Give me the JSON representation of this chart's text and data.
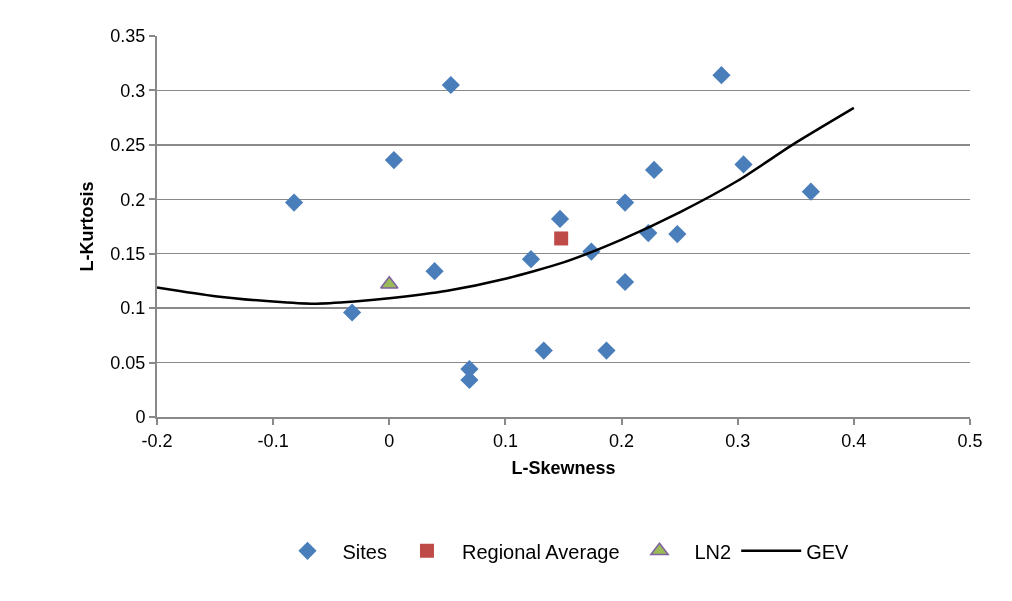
{
  "chart_data": {
    "type": "scatter",
    "xlabel": "L-Skewness",
    "ylabel": "L-Kurtosis",
    "xlim": [
      -0.2,
      0.5
    ],
    "xticks": [
      -0.2,
      -0.1,
      0,
      0.1,
      0.2,
      0.3,
      0.4,
      0.5
    ],
    "ylim": [
      0,
      0.35
    ],
    "yticks": [
      0,
      0.05,
      0.1,
      0.15,
      0.2,
      0.25,
      0.3,
      0.35
    ],
    "grid": "y",
    "legend": "bottom",
    "series": [
      {
        "name": "Sites",
        "color": "#4a7ebb",
        "marker": "diamond",
        "x": [
          -0.082,
          0.004,
          0.053,
          -0.032,
          0.039,
          0.069,
          0.069,
          0.122,
          0.133,
          0.147,
          0.174,
          0.203,
          0.203,
          0.223,
          0.228,
          0.248,
          0.286,
          0.305,
          0.363,
          0.187
        ],
        "values": [
          0.197,
          0.236,
          0.305,
          0.096,
          0.134,
          0.044,
          0.034,
          0.145,
          0.061,
          0.182,
          0.152,
          0.197,
          0.124,
          0.169,
          0.227,
          0.168,
          0.314,
          0.232,
          0.207,
          0.061
        ]
      },
      {
        "name": "Regional Average",
        "color": "#be4b48",
        "marker": "square",
        "x": [
          0.148
        ],
        "values": [
          0.164
        ]
      },
      {
        "name": "LN2",
        "color": "#9bbb59",
        "marker": "triangle",
        "x": [
          0
        ],
        "values": [
          0.122
        ]
      },
      {
        "name": "GEV",
        "type": "line",
        "color": "#000000",
        "marker": "none",
        "x": [
          -0.2,
          -0.15,
          -0.1,
          -0.065,
          -0.03,
          0,
          0.05,
          0.1,
          0.15,
          0.2,
          0.25,
          0.3,
          0.35,
          0.4
        ],
        "values": [
          0.119,
          0.111,
          0.106,
          0.104,
          0.106,
          0.109,
          0.116,
          0.127,
          0.142,
          0.163,
          0.188,
          0.217,
          0.252,
          0.284
        ]
      }
    ]
  }
}
